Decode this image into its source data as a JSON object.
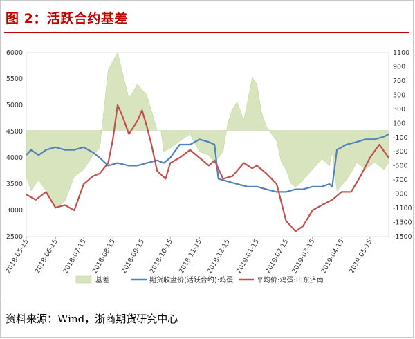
{
  "figure": {
    "title": "图 2：活跃合约基差",
    "source": "资料来源：Wind，浙商期货研究中心"
  },
  "chart_data": {
    "type": "line",
    "title": "",
    "xlabel": "",
    "ylabel": "",
    "x_ticks": [
      "2018-05-15",
      "2018-06-15",
      "2018-07-15",
      "2018-08-15",
      "2018-09-15",
      "2018-10-15",
      "2018-11-15",
      "2018-12-15",
      "2019-01-15",
      "2019-02-15",
      "2019-03-15",
      "2019-04-15",
      "2019-05-15"
    ],
    "x_range": [
      "2018-05-15",
      "2019-06-04"
    ],
    "y_left": {
      "lim": [
        2500,
        6000
      ],
      "ticks": [
        "2500",
        "3000",
        "3500",
        "4000",
        "4500",
        "5000",
        "5500",
        "6000"
      ]
    },
    "y_right": {
      "lim": [
        -1500,
        1100
      ],
      "ticks": [
        "-1500",
        "-1300",
        "-1100",
        "-900",
        "-700",
        "-500",
        "-300",
        "-100",
        "100",
        "300",
        "500",
        "700",
        "900",
        "1100"
      ]
    },
    "legend": {
      "placement": "bottom",
      "entries": [
        "基差",
        "期货收盘价(活跃合约):鸡蛋",
        "平均价:鸡蛋:山东济南"
      ]
    },
    "colors": {
      "basis": "#d7e4bd",
      "futures": "#4f81bd",
      "spot": "#c0504d"
    },
    "series": [
      {
        "name": "期货收盘价(活跃合约):鸡蛋",
        "axis": "left",
        "x": [
          "2018-05-15",
          "2018-05-20",
          "2018-05-28",
          "2018-06-05",
          "2018-06-15",
          "2018-06-25",
          "2018-07-05",
          "2018-07-15",
          "2018-07-25",
          "2018-08-01",
          "2018-08-10",
          "2018-08-20",
          "2018-09-01",
          "2018-09-10",
          "2018-09-20",
          "2018-10-01",
          "2018-10-08",
          "2018-10-15",
          "2018-10-25",
          "2018-11-05",
          "2018-11-15",
          "2018-11-25",
          "2018-12-01",
          "2018-12-05",
          "2018-12-15",
          "2018-12-25",
          "2019-01-05",
          "2019-01-15",
          "2019-01-25",
          "2019-02-05",
          "2019-02-15",
          "2019-02-25",
          "2019-03-05",
          "2019-03-15",
          "2019-03-25",
          "2019-04-02",
          "2019-04-05",
          "2019-04-10",
          "2019-04-20",
          "2019-05-01",
          "2019-05-10",
          "2019-05-20",
          "2019-05-30",
          "2019-06-04"
        ],
        "values": [
          4050,
          4150,
          4050,
          4150,
          4200,
          4150,
          4150,
          4200,
          4100,
          4000,
          3850,
          3900,
          3850,
          3850,
          3900,
          3950,
          3900,
          4000,
          4250,
          4250,
          4350,
          4300,
          4250,
          3600,
          3550,
          3500,
          3450,
          3450,
          3400,
          3350,
          3350,
          3400,
          3400,
          3450,
          3450,
          3500,
          3450,
          4150,
          4250,
          4300,
          4350,
          4350,
          4400,
          4450
        ]
      },
      {
        "name": "平均价:鸡蛋:山东济南",
        "axis": "left",
        "x": [
          "2018-05-15",
          "2018-05-25",
          "2018-06-05",
          "2018-06-15",
          "2018-06-25",
          "2018-07-05",
          "2018-07-15",
          "2018-07-25",
          "2018-08-01",
          "2018-08-10",
          "2018-08-15",
          "2018-08-20",
          "2018-08-25",
          "2018-09-01",
          "2018-09-10",
          "2018-09-15",
          "2018-09-20",
          "2018-09-25",
          "2018-10-01",
          "2018-10-10",
          "2018-10-15",
          "2018-10-25",
          "2018-11-05",
          "2018-11-15",
          "2018-11-25",
          "2018-12-01",
          "2018-12-10",
          "2018-12-20",
          "2019-01-01",
          "2019-01-10",
          "2019-01-15",
          "2019-01-25",
          "2019-02-05",
          "2019-02-15",
          "2019-02-25",
          "2019-03-05",
          "2019-03-15",
          "2019-03-25",
          "2019-04-05",
          "2019-04-15",
          "2019-04-25",
          "2019-05-05",
          "2019-05-15",
          "2019-05-25",
          "2019-06-04"
        ],
        "values": [
          3300,
          3200,
          3350,
          3050,
          3100,
          3000,
          3500,
          3650,
          3700,
          3900,
          4350,
          5000,
          4800,
          4450,
          4700,
          4900,
          4600,
          4250,
          3750,
          3600,
          3900,
          4000,
          4150,
          4000,
          3850,
          3950,
          3600,
          3650,
          3900,
          3800,
          3850,
          3700,
          3500,
          2800,
          2600,
          2700,
          3000,
          3100,
          3200,
          3350,
          3350,
          3650,
          4000,
          4250,
          4000
        ]
      },
      {
        "name": "基差",
        "axis": "right",
        "type": "area",
        "x": [
          "2018-05-15",
          "2018-05-20",
          "2018-05-28",
          "2018-06-05",
          "2018-06-15",
          "2018-06-25",
          "2018-07-05",
          "2018-07-15",
          "2018-07-25",
          "2018-08-01",
          "2018-08-10",
          "2018-08-20",
          "2018-09-01",
          "2018-09-10",
          "2018-09-20",
          "2018-10-01",
          "2018-10-05",
          "2018-10-08",
          "2018-10-15",
          "2018-10-25",
          "2018-11-05",
          "2018-11-15",
          "2018-11-25",
          "2018-12-01",
          "2018-12-10",
          "2018-12-15",
          "2018-12-20",
          "2018-12-25",
          "2019-01-01",
          "2019-01-05",
          "2019-01-10",
          "2019-01-15",
          "2019-01-20",
          "2019-01-25",
          "2019-01-28",
          "2019-02-05",
          "2019-02-10",
          "2019-02-15",
          "2019-02-20",
          "2019-02-25",
          "2019-03-05",
          "2019-03-15",
          "2019-03-25",
          "2019-04-02",
          "2019-04-05",
          "2019-04-10",
          "2019-04-20",
          "2019-04-25",
          "2019-05-01",
          "2019-05-10",
          "2019-05-20",
          "2019-05-30",
          "2019-06-04"
        ],
        "values": [
          -650,
          -850,
          -700,
          -850,
          -1100,
          -1000,
          -650,
          -550,
          -350,
          -250,
          850,
          1100,
          450,
          650,
          500,
          0,
          0,
          -300,
          -250,
          -150,
          -50,
          -300,
          -350,
          -450,
          -300,
          100,
          300,
          400,
          150,
          400,
          750,
          650,
          250,
          50,
          0,
          -150,
          -450,
          -550,
          -750,
          -800,
          -700,
          -550,
          -400,
          -500,
          -300,
          -850,
          -700,
          -600,
          -450,
          -550,
          -450,
          -550,
          -450
        ]
      }
    ]
  }
}
